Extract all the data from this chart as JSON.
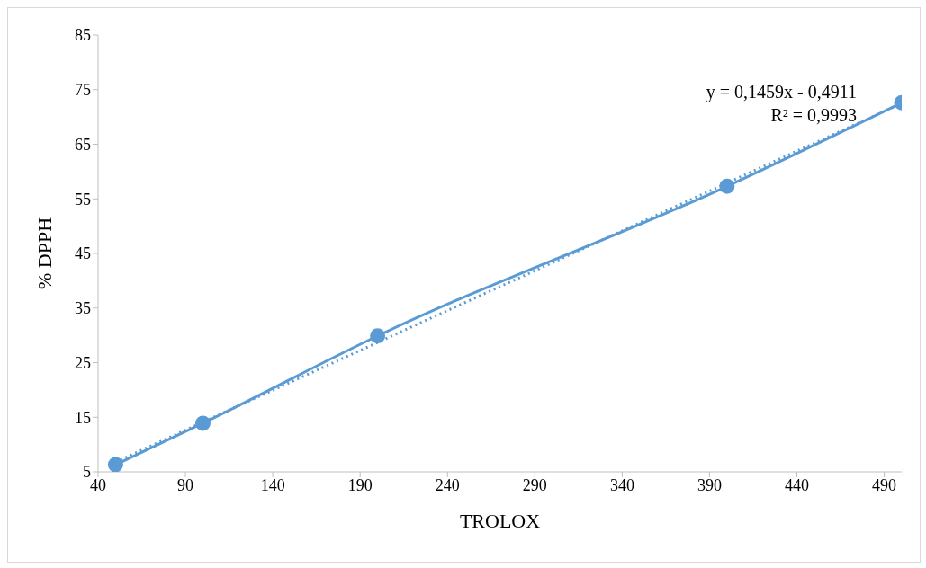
{
  "chart_data": {
    "type": "line",
    "xlabel": "TROLOX",
    "ylabel": "% DPPH",
    "xlim": [
      40,
      500
    ],
    "xticks": [
      40,
      90,
      140,
      190,
      240,
      290,
      340,
      390,
      440,
      490
    ],
    "ylim": [
      5,
      85
    ],
    "yticks": [
      5,
      15,
      25,
      35,
      45,
      55,
      65,
      75,
      85
    ],
    "grid": false,
    "series": [
      {
        "color": "#5b9bd5",
        "x": [
          50,
          100,
          200,
          400,
          500
        ],
        "values": [
          6.3,
          13.9,
          29.9,
          57.3,
          72.6
        ],
        "marker": "circle",
        "line_style": "solid"
      },
      {
        "type": "line",
        "color": "#5b9bd5",
        "x": [
          50,
          500
        ],
        "values": [
          6.8,
          72.5
        ],
        "marker": "none",
        "line_style": "dotted"
      }
    ],
    "annotations": [
      "y = 0,1459x - 0,4911",
      "R² = 0,9993"
    ]
  }
}
